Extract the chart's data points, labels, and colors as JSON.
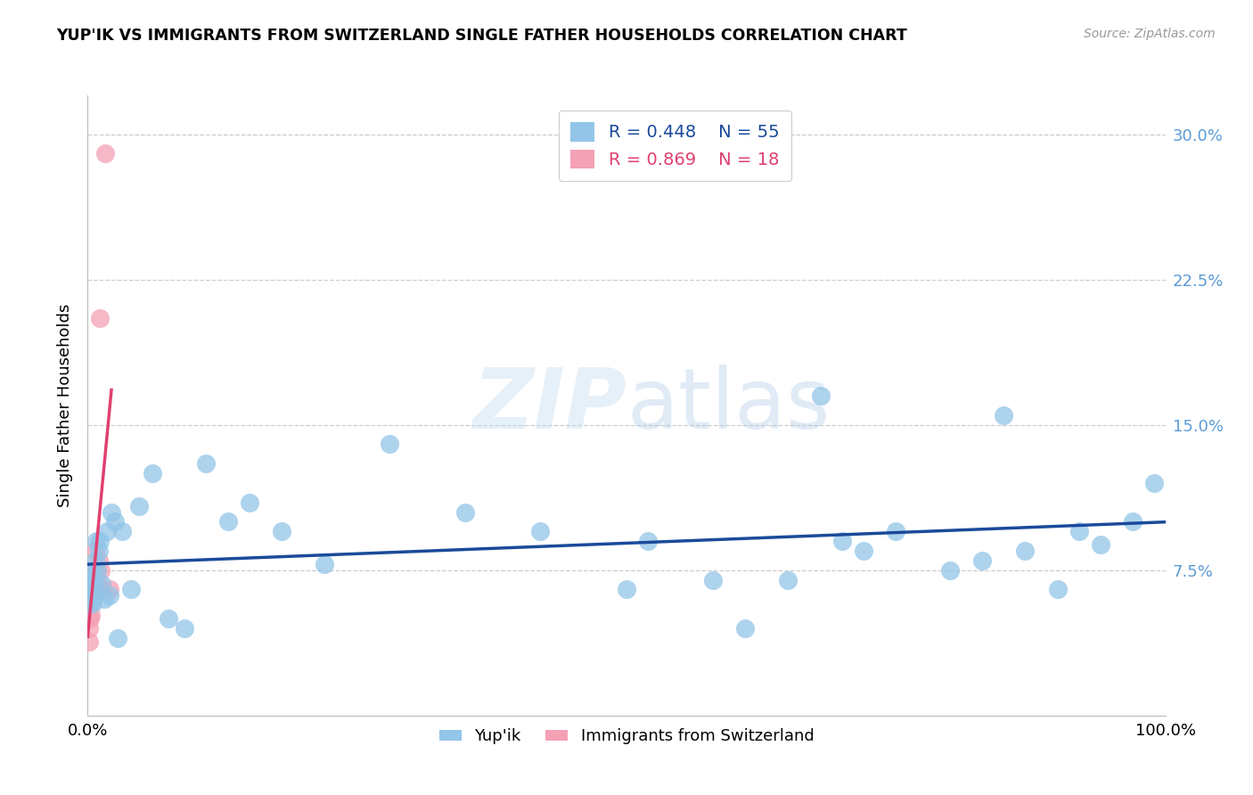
{
  "title": "YUP'IK VS IMMIGRANTS FROM SWITZERLAND SINGLE FATHER HOUSEHOLDS CORRELATION CHART",
  "source": "Source: ZipAtlas.com",
  "ylabel": "Single Father Households",
  "yticks_labels": [
    "7.5%",
    "15.0%",
    "22.5%",
    "30.0%"
  ],
  "yticks_vals": [
    0.075,
    0.15,
    0.225,
    0.3
  ],
  "xticks_labels": [
    "0.0%",
    "100.0%"
  ],
  "xticks_vals": [
    0.0,
    1.0
  ],
  "legend_r_blue": "0.448",
  "legend_n_blue": "55",
  "legend_r_pink": "0.869",
  "legend_n_pink": "18",
  "legend_label_blue": "Yup'ik",
  "legend_label_pink": "Immigrants from Switzerland",
  "blue_color": "#92C5E8",
  "pink_color": "#F4A0B5",
  "blue_line_color": "#1A4A9A",
  "pink_line_color": "#E04070",
  "xlim": [
    0.0,
    1.0
  ],
  "ylim": [
    0.0,
    0.32
  ],
  "blue_x": [
    0.001,
    0.001,
    0.002,
    0.002,
    0.003,
    0.003,
    0.004,
    0.005,
    0.005,
    0.006,
    0.006,
    0.007,
    0.008,
    0.009,
    0.01,
    0.011,
    0.013,
    0.015,
    0.018,
    0.02,
    0.022,
    0.025,
    0.028,
    0.032,
    0.04,
    0.048,
    0.06,
    0.075,
    0.09,
    0.11,
    0.13,
    0.15,
    0.18,
    0.22,
    0.28,
    0.35,
    0.42,
    0.5,
    0.52,
    0.58,
    0.61,
    0.65,
    0.68,
    0.7,
    0.72,
    0.75,
    0.8,
    0.83,
    0.85,
    0.87,
    0.9,
    0.92,
    0.94,
    0.97,
    0.99
  ],
  "blue_y": [
    0.058,
    0.065,
    0.06,
    0.07,
    0.068,
    0.072,
    0.06,
    0.058,
    0.075,
    0.062,
    0.068,
    0.08,
    0.09,
    0.075,
    0.085,
    0.09,
    0.068,
    0.06,
    0.095,
    0.062,
    0.105,
    0.1,
    0.04,
    0.095,
    0.065,
    0.108,
    0.125,
    0.05,
    0.045,
    0.13,
    0.1,
    0.11,
    0.095,
    0.078,
    0.14,
    0.105,
    0.095,
    0.065,
    0.09,
    0.07,
    0.045,
    0.07,
    0.165,
    0.09,
    0.085,
    0.095,
    0.075,
    0.08,
    0.155,
    0.085,
    0.065,
    0.095,
    0.088,
    0.1,
    0.12
  ],
  "pink_x": [
    0.001,
    0.001,
    0.002,
    0.002,
    0.003,
    0.003,
    0.004,
    0.005,
    0.006,
    0.007,
    0.008,
    0.009,
    0.01,
    0.011,
    0.012,
    0.014,
    0.016,
    0.02
  ],
  "pink_y": [
    0.038,
    0.045,
    0.05,
    0.06,
    0.052,
    0.058,
    0.065,
    0.07,
    0.062,
    0.085,
    0.075,
    0.068,
    0.08,
    0.205,
    0.075,
    0.065,
    0.29,
    0.065
  ],
  "blue_line_x0": 0.0,
  "blue_line_x1": 1.0,
  "pink_line_x0": 0.0,
  "pink_line_x1": 0.022
}
